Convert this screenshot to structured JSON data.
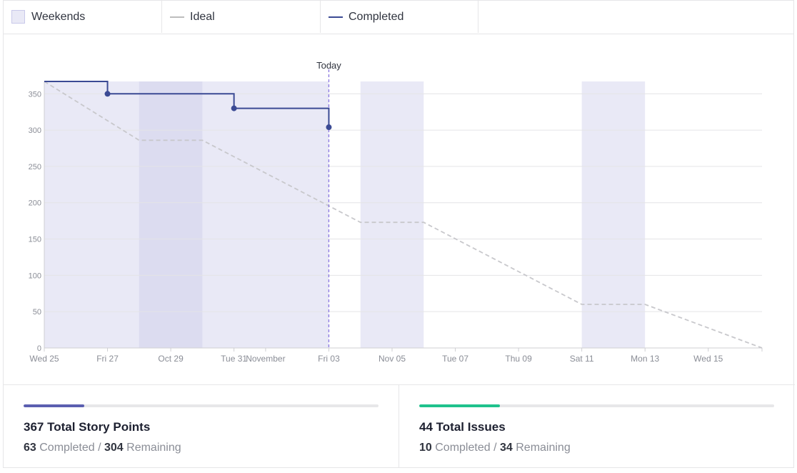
{
  "legend": {
    "items": [
      {
        "label": "Weekends",
        "kind": "box",
        "color": "#e9e9f6"
      },
      {
        "label": "Ideal",
        "kind": "line",
        "color": "#bdbdbd"
      },
      {
        "label": "Completed",
        "kind": "line",
        "color": "#3b4a94"
      }
    ]
  },
  "chart_data": {
    "type": "line",
    "title": "",
    "xlabel": "",
    "ylabel": "",
    "ylim": [
      0,
      350
    ],
    "yticks": [
      0,
      50,
      100,
      150,
      200,
      250,
      300,
      350
    ],
    "x_ticks": [
      {
        "day": 0,
        "label": "Wed 25"
      },
      {
        "day": 2,
        "label": "Fri 27"
      },
      {
        "day": 4,
        "label": "Oct 29"
      },
      {
        "day": 6,
        "label": "Tue 31"
      },
      {
        "day": 7,
        "label": "November"
      },
      {
        "day": 9,
        "label": "Fri 03"
      },
      {
        "day": 11,
        "label": "Nov 05"
      },
      {
        "day": 13,
        "label": "Tue 07"
      },
      {
        "day": 15,
        "label": "Thu 09"
      },
      {
        "day": 17,
        "label": "Sat 11"
      },
      {
        "day": 19,
        "label": "Mon 13"
      },
      {
        "day": 21,
        "label": "Wed 15"
      }
    ],
    "x_range_days": [
      0,
      22.7
    ],
    "weekend_bands": [
      [
        3,
        5
      ],
      [
        10,
        12
      ],
      [
        17,
        19
      ]
    ],
    "today": {
      "day": 9,
      "label": "Today",
      "color": "#8a76e0"
    },
    "sprint_shade": {
      "from": 0,
      "to": 9,
      "color": "#e9e9f6"
    },
    "overlap_shade_color": "#dcdcf0",
    "grid": true,
    "series": [
      {
        "name": "Ideal",
        "color": "#c8c8cc",
        "style": "dashed",
        "points": [
          [
            0,
            367
          ],
          [
            3,
            286
          ],
          [
            5,
            286
          ],
          [
            10,
            173
          ],
          [
            12,
            173
          ],
          [
            17,
            60
          ],
          [
            19,
            60
          ],
          [
            22.7,
            0
          ]
        ]
      },
      {
        "name": "Completed",
        "color": "#3b4a94",
        "style": "step",
        "points": [
          [
            0,
            367
          ],
          [
            2,
            350
          ],
          [
            6,
            330
          ],
          [
            9,
            304
          ]
        ],
        "markers": [
          [
            2,
            350
          ],
          [
            6,
            330
          ],
          [
            9,
            304
          ]
        ]
      }
    ]
  },
  "stats": {
    "story_points": {
      "total": "367",
      "title_suffix": "Total Story Points",
      "completed": "63",
      "completed_label": "Completed",
      "separator": "/",
      "remaining": "304",
      "remaining_label": "Remaining",
      "progress": 0.1717,
      "color": "#5b5fb0"
    },
    "issues": {
      "total": "44",
      "title_suffix": "Total Issues",
      "completed": "10",
      "completed_label": "Completed",
      "separator": "/",
      "remaining": "34",
      "remaining_label": "Remaining",
      "progress": 0.2273,
      "color": "#1fc28d"
    }
  }
}
